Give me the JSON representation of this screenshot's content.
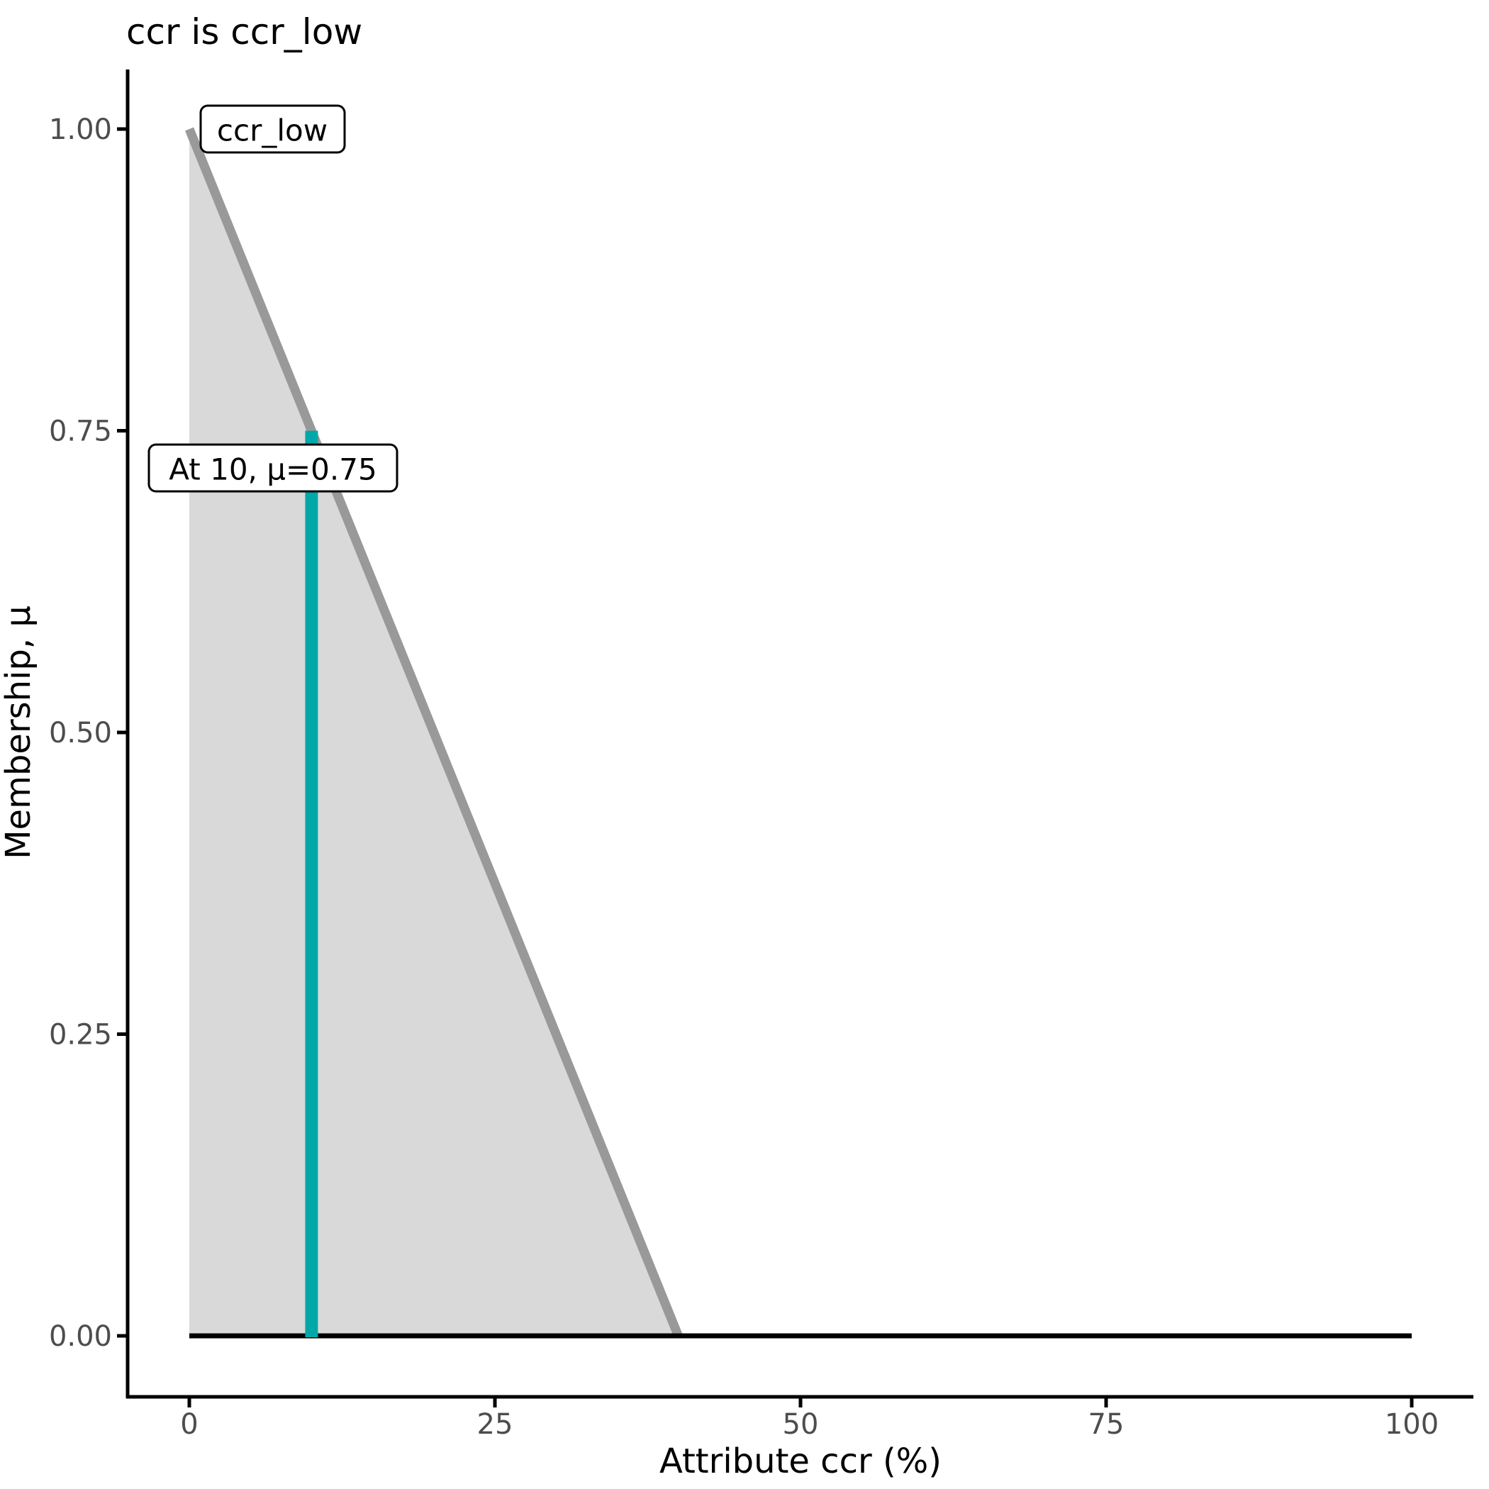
{
  "title": "ccr is ccr_low",
  "axes": {
    "x": {
      "label": "Attribute ccr (%)",
      "tick_values": [
        0,
        25,
        50,
        75,
        100
      ],
      "tick_labels": [
        "0",
        "25",
        "50",
        "75",
        "100"
      ]
    },
    "y": {
      "label": "Membership, μ",
      "tick_values": [
        0,
        0.25,
        0.5,
        0.75,
        1
      ],
      "tick_labels": [
        "0.00",
        "0.25",
        "0.50",
        "0.75",
        "1.00"
      ]
    }
  },
  "annotations": {
    "mf_label": "ccr_low",
    "crisp_label": "At 10, μ=0.75"
  },
  "colors": {
    "mf_line": "#999999",
    "mf_fill": "#D9D9D9",
    "crisp_line": "#00A9A8",
    "zero_line": "#000000",
    "axis": "#000000",
    "tick_label": "#4D4D4D",
    "annotation_bg": "#FFFFFF",
    "annotation_border": "#000000"
  },
  "chart_data": {
    "type": "area",
    "title": "ccr is ccr_low",
    "xlabel": "Attribute ccr (%)",
    "ylabel": "Membership, μ",
    "xlim": [
      0,
      100
    ],
    "ylim": [
      0,
      1
    ],
    "grid": false,
    "legend": false,
    "x_ticks": {
      "values": [
        0,
        25,
        50,
        75,
        100
      ],
      "labels": [
        "0",
        "25",
        "50",
        "75",
        "100"
      ]
    },
    "y_ticks": {
      "values": [
        0,
        0.25,
        0.5,
        0.75,
        1
      ],
      "labels": [
        "0.00",
        "0.25",
        "0.50",
        "0.75",
        "1.00"
      ]
    },
    "membership_function": {
      "name": "ccr_low",
      "points": [
        [
          0,
          1
        ],
        [
          40,
          0
        ]
      ],
      "fill_under": true
    },
    "universe_line": {
      "points": [
        [
          0,
          0
        ],
        [
          100,
          0
        ]
      ]
    },
    "crisp": {
      "x": 10,
      "mu": 0.75,
      "label": "At 10, μ=0.75"
    }
  }
}
